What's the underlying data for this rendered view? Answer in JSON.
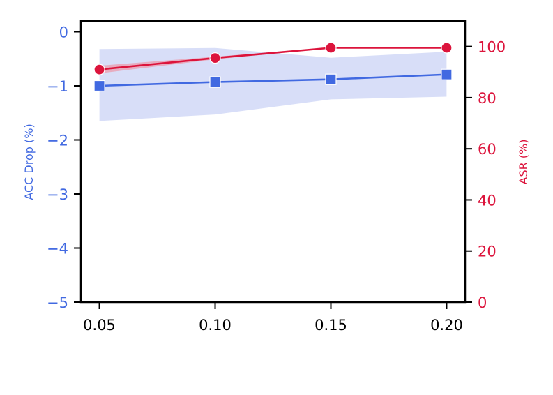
{
  "chart_data": {
    "type": "line",
    "x": [
      0.05,
      0.1,
      0.15,
      0.2
    ],
    "x_tick_labels": [
      "0.05",
      "0.10",
      "0.15",
      "0.20"
    ],
    "xlim": [
      0.042,
      0.208
    ],
    "left_axis": {
      "label": "ACC Drop (%)",
      "ylim": [
        -5,
        0.2
      ],
      "ticks": [
        0,
        -1,
        -2,
        -3,
        -4,
        -5
      ],
      "tick_labels": [
        "0",
        "−1",
        "−2",
        "−3",
        "−4",
        "−5"
      ],
      "color": "#4169e1"
    },
    "right_axis": {
      "label": "ASR (%)",
      "ylim": [
        0,
        110
      ],
      "ticks": [
        0,
        20,
        40,
        60,
        80,
        100
      ],
      "tick_labels": [
        "0",
        "20",
        "40",
        "60",
        "80",
        "100"
      ],
      "color": "#dc143c"
    },
    "series": [
      {
        "axis": "left",
        "marker": "square",
        "color": "#4169e1",
        "band_color": "#d6dcf8",
        "values": [
          -1.0,
          -0.93,
          -0.88,
          -0.79
        ],
        "lower": [
          -1.65,
          -1.53,
          -1.25,
          -1.2
        ],
        "upper": [
          -0.32,
          -0.3,
          -0.48,
          -0.37
        ]
      },
      {
        "axis": "right",
        "marker": "circle",
        "color": "#dc143c",
        "band_color": "#e8a9bd",
        "values": [
          91,
          95.5,
          99.5,
          99.5
        ],
        "lower": [
          89.5,
          95,
          99.3,
          99.3
        ],
        "upper": [
          92.5,
          96,
          99.7,
          99.7
        ]
      }
    ],
    "grid": false,
    "legend": "none"
  }
}
